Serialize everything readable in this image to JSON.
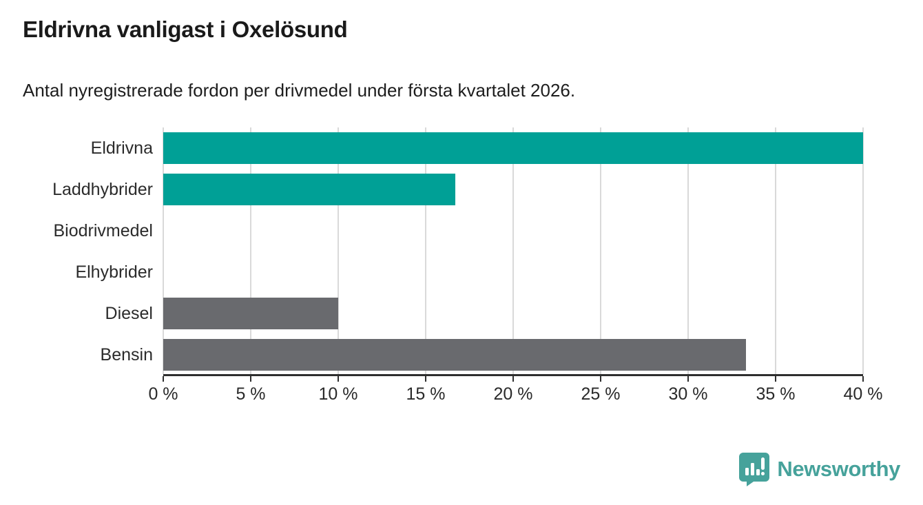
{
  "chart_data": {
    "type": "bar",
    "orientation": "horizontal",
    "title": "Eldrivna vanligast i Oxelösund",
    "subtitle": "Antal nyregistrerade fordon per drivmedel under första kvartalet 2026.",
    "categories": [
      "Eldrivna",
      "Laddhybrider",
      "Biodrivmedel",
      "Elhybrider",
      "Diesel",
      "Bensin"
    ],
    "values": [
      40,
      16.7,
      0,
      0,
      10,
      33.3
    ],
    "unit": "%",
    "bar_colors": [
      "#00a096",
      "#00a096",
      "#00a096",
      "#00a096",
      "#696a6e",
      "#696a6e"
    ],
    "xlim": [
      0,
      40
    ],
    "xticks": [
      0,
      5,
      10,
      15,
      20,
      25,
      30,
      35,
      40
    ],
    "xtick_labels": [
      "0 %",
      "5 %",
      "10 %",
      "15 %",
      "20 %",
      "25 %",
      "30 %",
      "35 %",
      "40 %"
    ],
    "xlabel": "",
    "ylabel": "",
    "grid": "vertical-only",
    "legend": "none"
  },
  "branding": {
    "logo_text": "Newsworthy",
    "logo_icon": "newsworthy-speech-bubble-bar-chart-icon",
    "logo_color": "#46a29b"
  },
  "colors": {
    "bar_teal": "#00a096",
    "bar_gray": "#696a6e",
    "gridline": "#d9d9d9",
    "axis": "#2e2e2e",
    "title_text": "#1a1a1a",
    "body_text": "#2b2b2b"
  }
}
